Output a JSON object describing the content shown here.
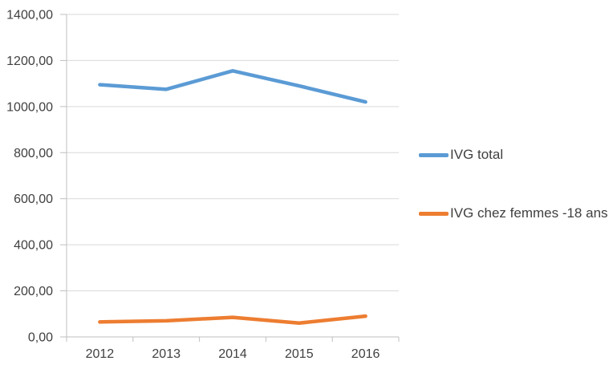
{
  "chart_data": {
    "type": "line",
    "title": "",
    "xlabel": "",
    "ylabel": "",
    "categories": [
      "2012",
      "2013",
      "2014",
      "2015",
      "2016"
    ],
    "series": [
      {
        "name": "IVG total",
        "color": "#5B9BD5",
        "values": [
          1095,
          1075,
          1155,
          1090,
          1020
        ]
      },
      {
        "name": "IVG chez femmes -18 ans",
        "color": "#ED7D31",
        "values": [
          65,
          70,
          85,
          60,
          90
        ]
      }
    ],
    "ylim": [
      0,
      1400
    ],
    "y_step": 200,
    "y_tick_labels": [
      "0,00",
      "200,00",
      "400,00",
      "600,00",
      "800,00",
      "1000,00",
      "1200,00",
      "1400,00"
    ],
    "grid": true,
    "legend_position": "right"
  },
  "colors": {
    "grid": "#D9D9D9",
    "axis": "#BFBFBF",
    "text": "#404040",
    "background": "#FFFFFF"
  }
}
